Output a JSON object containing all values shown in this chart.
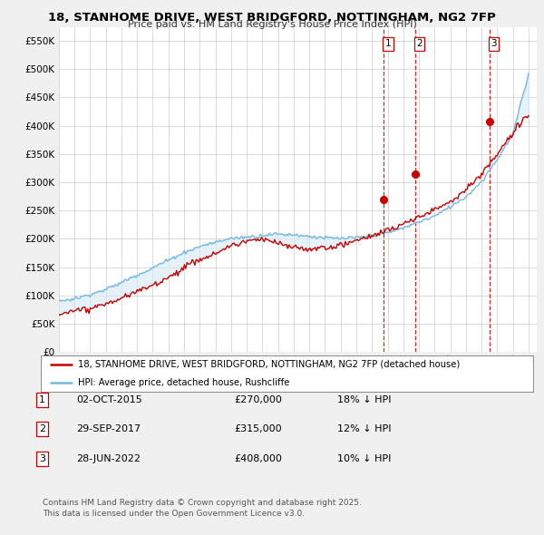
{
  "title_line1": "18, STANHOME DRIVE, WEST BRIDGFORD, NOTTINGHAM, NG2 7FP",
  "title_line2": "Price paid vs. HM Land Registry's House Price Index (HPI)",
  "ytick_values": [
    0,
    50000,
    100000,
    150000,
    200000,
    250000,
    300000,
    350000,
    400000,
    450000,
    500000,
    550000
  ],
  "ylim": [
    0,
    575000
  ],
  "xlim_start": 1995.0,
  "xlim_end": 2025.5,
  "sale_year_nums": [
    2015.75,
    2017.75,
    2022.5
  ],
  "sale_prices": [
    270000,
    315000,
    408000
  ],
  "sale_labels": [
    "1",
    "2",
    "3"
  ],
  "hpi_color": "#74b9e0",
  "price_color": "#cc0000",
  "vline_color": "#cc0000",
  "fill_color": "#d6eaf8",
  "legend_label_price": "18, STANHOME DRIVE, WEST BRIDGFORD, NOTTINGHAM, NG2 7FP (detached house)",
  "legend_label_hpi": "HPI: Average price, detached house, Rushcliffe",
  "table_entries": [
    {
      "label": "1",
      "date": "02-OCT-2015",
      "price": "£270,000",
      "hpi": "18% ↓ HPI"
    },
    {
      "label": "2",
      "date": "29-SEP-2017",
      "price": "£315,000",
      "hpi": "12% ↓ HPI"
    },
    {
      "label": "3",
      "date": "28-JUN-2022",
      "price": "£408,000",
      "hpi": "10% ↓ HPI"
    }
  ],
  "footnote": "Contains HM Land Registry data © Crown copyright and database right 2025.\nThis data is licensed under the Open Government Licence v3.0.",
  "background_color": "#f0f0f0",
  "plot_bg_color": "#ffffff",
  "grid_color": "#cccccc"
}
